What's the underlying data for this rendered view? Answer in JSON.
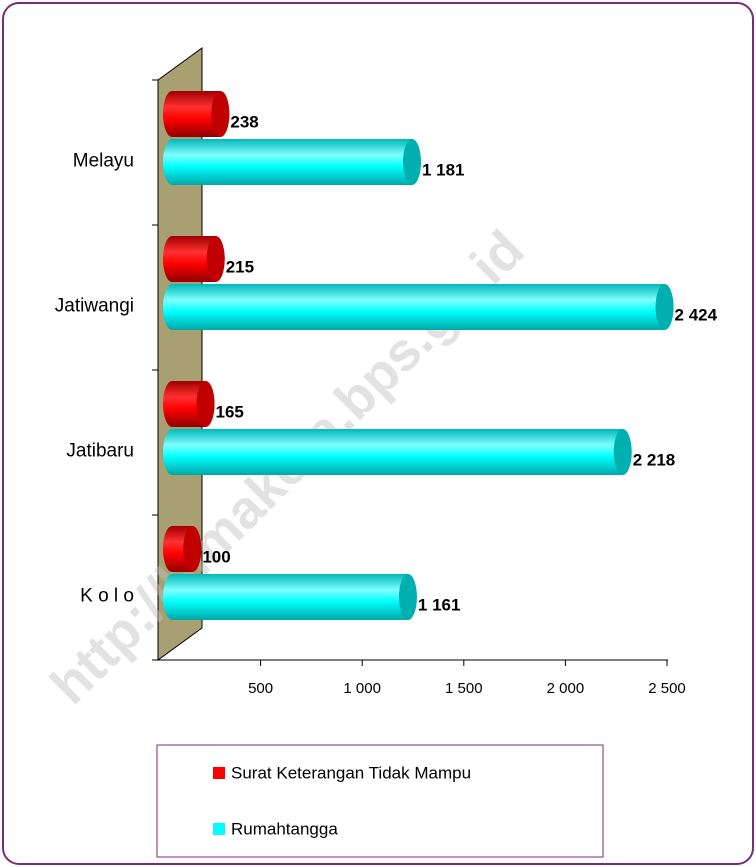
{
  "chart_data": {
    "type": "bar3d",
    "categories": [
      "Melayu",
      "Jatiwangi",
      "Jatibaru",
      "K o l o"
    ],
    "series": [
      {
        "name": "Surat Keterangan Tidak Mampu",
        "color": "#ff0000",
        "values": [
          238,
          215,
          165,
          100
        ]
      },
      {
        "name": "Rumahtangga",
        "color": "#00ffff",
        "values": [
          1181,
          2424,
          2218,
          1161
        ],
        "value_labels": [
          "1 181",
          "2 424",
          "2 218",
          "1 161"
        ]
      }
    ],
    "xlim": [
      0,
      2500
    ],
    "xticks": [
      500,
      {
        "value": 1000,
        "label": "1 000"
      },
      {
        "value": 1500,
        "label": "1 500"
      },
      {
        "value": 2000,
        "label": "2 000"
      },
      {
        "value": 2500,
        "label": "2 500"
      }
    ],
    "legend": "bottom",
    "watermark": "http://bimakota.bps.go.id"
  }
}
